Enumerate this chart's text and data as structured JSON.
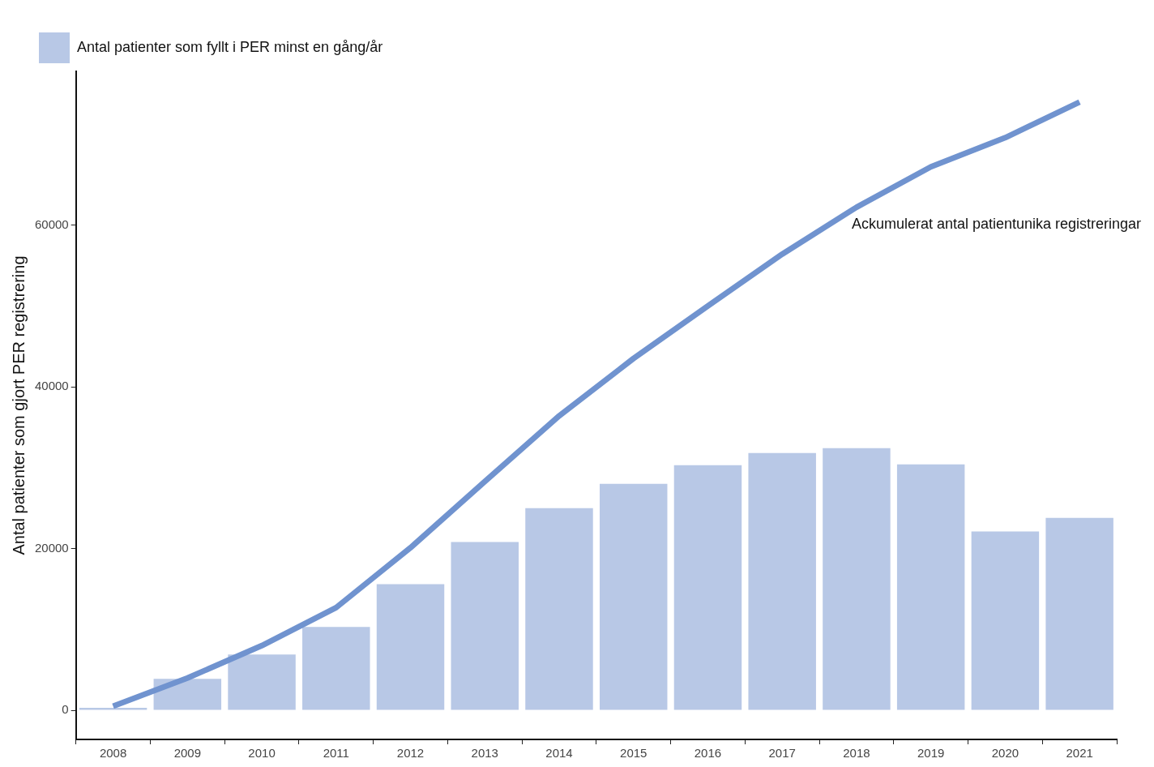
{
  "chart_data": {
    "type": "bar",
    "ylabel": "Antal patienter som gjort PER registrering",
    "categories": [
      "2008",
      "2009",
      "2010",
      "2011",
      "2012",
      "2013",
      "2014",
      "2015",
      "2016",
      "2017",
      "2018",
      "2019",
      "2020",
      "2021"
    ],
    "series": [
      {
        "name": "Antal patienter som fyllt i PER minst en gång/år",
        "color": "#b8c8e6",
        "values": [
          300,
          3900,
          6900,
          10300,
          15600,
          20800,
          25000,
          28000,
          30300,
          31800,
          32400,
          30400,
          22100,
          23800
        ]
      },
      {
        "type": "line",
        "color": "#7093cf",
        "values": [
          500,
          4000,
          8000,
          12700,
          20100,
          28300,
          36400,
          43500,
          50000,
          56400,
          62200,
          67200,
          70800,
          75200
        ]
      }
    ],
    "ylim": [
      -3600,
      79000
    ],
    "yticks": [
      0,
      20000,
      40000,
      60000
    ],
    "grid": false,
    "legend": "top left",
    "marker": "none",
    "annotations": [
      {
        "text": "Ackumulerat antal patientunika registreringar",
        "x": "2018",
        "y": 62200
      }
    ]
  }
}
